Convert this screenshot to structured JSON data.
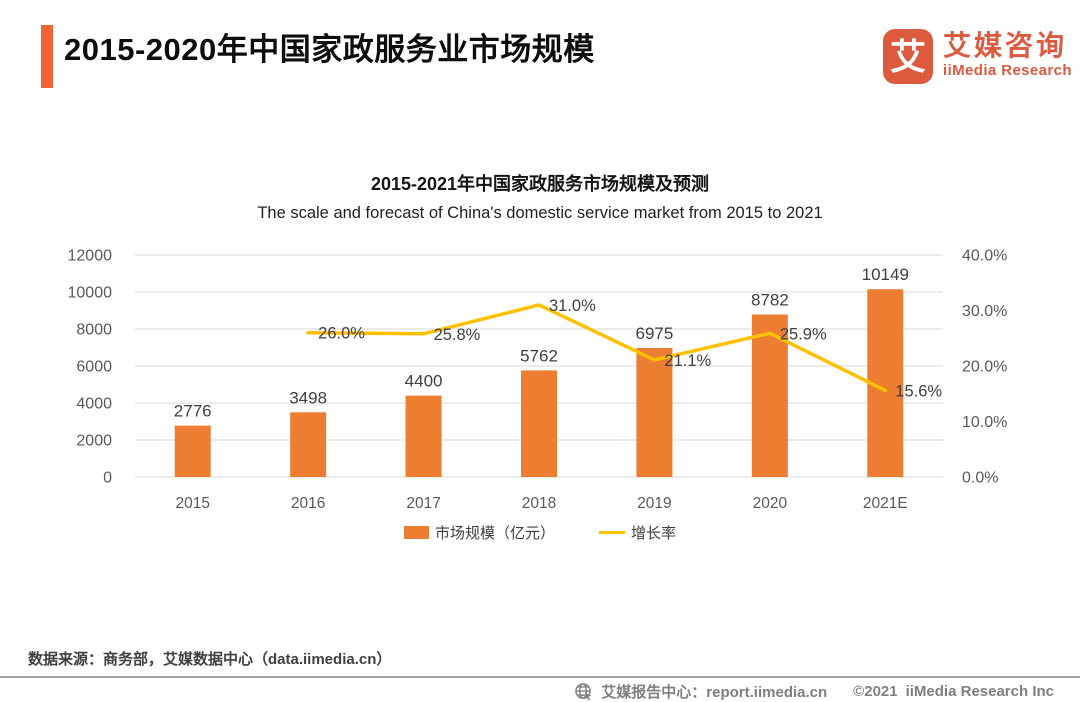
{
  "header": {
    "title": "2015-2020年中国家政服务业市场规模"
  },
  "logo": {
    "mark_glyph": "艾",
    "name_cn": "艾媒咨询",
    "name_en": "iiMedia Research"
  },
  "chart_data": {
    "type": "combo",
    "title": "2015-2021年中国家政服务市场规模及预测",
    "subtitle": "The scale and forecast of China's domestic service market from 2015 to 2021",
    "categories": [
      "2015",
      "2016",
      "2017",
      "2018",
      "2019",
      "2020",
      "2021E"
    ],
    "series": [
      {
        "name": "市场规模（亿元）",
        "type": "bar",
        "axis": "left",
        "color": "#ED7D31",
        "values": [
          2776,
          3498,
          4400,
          5762,
          6975,
          8782,
          10149
        ],
        "value_labels": [
          "2776",
          "3498",
          "4400",
          "5762",
          "6975",
          "8782",
          "10149"
        ]
      },
      {
        "name": "增长率",
        "type": "line",
        "axis": "right",
        "color": "#FFC000",
        "values": [
          null,
          26.0,
          25.8,
          31.0,
          21.1,
          25.9,
          15.6
        ],
        "value_labels": [
          "",
          "26.0%",
          "25.8%",
          "31.0%",
          "21.1%",
          "25.9%",
          "15.6%"
        ]
      }
    ],
    "left_axis": {
      "min": 0,
      "max": 12000,
      "step": 2000,
      "ticks": [
        "0",
        "2000",
        "4000",
        "6000",
        "8000",
        "10000",
        "12000"
      ]
    },
    "right_axis": {
      "min": 0,
      "max": 40,
      "step": 10,
      "ticks": [
        "0.0%",
        "10.0%",
        "20.0%",
        "30.0%",
        "40.0%"
      ]
    },
    "grid": true,
    "legend_position": "bottom",
    "colors": {
      "grid": "#D9D9D9",
      "axis_text": "#595959",
      "label_text": "#3f3f3f"
    }
  },
  "source": {
    "text": "数据来源：商务部，艾媒数据中心（data.iimedia.cn）"
  },
  "footer": {
    "report_center": "艾媒报告中心：report.iimedia.cn",
    "copyright": "©2021",
    "company": "iiMedia Research Inc"
  }
}
